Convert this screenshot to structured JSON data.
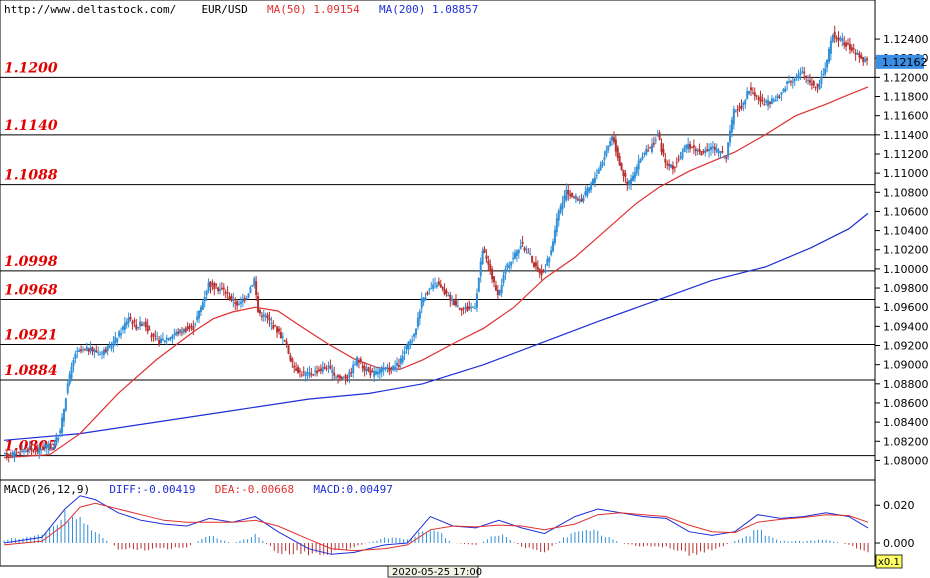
{
  "header": {
    "source_url": "http://www.deltastock.com/",
    "symbol": "EUR/USD",
    "ma50_label": "MA(50)",
    "ma50_value": "1.09154",
    "ma200_label": "MA(200)",
    "ma200_value": "1.08857"
  },
  "macd_header": {
    "name": "MACD(26,12,9)",
    "diff": "DIFF:-0.00419",
    "dea": "DEA:-0.00668",
    "macd": "MACD:0.00497"
  },
  "footer": {
    "date_label": "2020-05-25 17:00",
    "zoom_label": "x0.1"
  },
  "current_price": "1.12162",
  "colors": {
    "up": "#2f8fd8",
    "down": "#b83030",
    "ma50": "#e03030",
    "ma200": "#1e2ed8",
    "level_text": "#e00000",
    "price_tag": "#3a8ee6"
  },
  "chart_data": {
    "type": "candlestick",
    "y_ticks": [
      "1.12400",
      "1.12200",
      "1.12000",
      "1.11800",
      "1.11600",
      "1.11400",
      "1.11200",
      "1.11000",
      "1.10800",
      "1.10600",
      "1.10400",
      "1.10200",
      "1.10000",
      "1.09800",
      "1.09600",
      "1.09400",
      "1.09200",
      "1.09000",
      "1.08800",
      "1.08600",
      "1.08400",
      "1.08200",
      "1.08000"
    ],
    "ylim": [
      1.079,
      1.1262
    ],
    "levels": [
      "1.1200",
      "1.1140",
      "1.1088",
      "1.0998",
      "1.0968",
      "1.0921",
      "1.0884",
      "1.0805"
    ],
    "macd_ticks": [
      "0.020",
      "0.000"
    ],
    "price_path": [
      [
        0,
        1.0805
      ],
      [
        4,
        1.0808
      ],
      [
        7,
        1.0812
      ],
      [
        9,
        1.081
      ],
      [
        11,
        1.0815
      ],
      [
        13,
        1.0814
      ],
      [
        15,
        1.083
      ],
      [
        17,
        1.088
      ],
      [
        19,
        1.0912
      ],
      [
        22,
        1.0916
      ],
      [
        26,
        1.0913
      ],
      [
        28,
        1.0918
      ],
      [
        31,
        1.0935
      ],
      [
        33,
        1.095
      ],
      [
        35,
        1.094
      ],
      [
        37,
        1.0945
      ],
      [
        39,
        1.093
      ],
      [
        41,
        1.0924
      ],
      [
        44,
        1.093
      ],
      [
        47,
        1.0936
      ],
      [
        50,
        1.0939
      ],
      [
        52,
        1.096
      ],
      [
        54,
        1.0985
      ],
      [
        56,
        1.098
      ],
      [
        58,
        1.0978
      ],
      [
        60,
        1.0968
      ],
      [
        62,
        1.0962
      ],
      [
        64,
        1.0972
      ],
      [
        66,
        1.099
      ],
      [
        67,
        1.0955
      ],
      [
        69,
        1.095
      ],
      [
        72,
        1.0936
      ],
      [
        74,
        1.0925
      ],
      [
        76,
        1.09
      ],
      [
        78,
        1.0892
      ],
      [
        80,
        1.089
      ],
      [
        83,
        1.0894
      ],
      [
        85,
        1.0898
      ],
      [
        87,
        1.089
      ],
      [
        89,
        1.0885
      ],
      [
        91,
        1.089
      ],
      [
        93,
        1.0906
      ],
      [
        95,
        1.0896
      ],
      [
        97,
        1.089
      ],
      [
        99,
        1.0894
      ],
      [
        102,
        1.0896
      ],
      [
        104,
        1.09
      ],
      [
        106,
        1.0918
      ],
      [
        108,
        1.093
      ],
      [
        110,
        1.0968
      ],
      [
        112,
        1.0978
      ],
      [
        114,
        1.0985
      ],
      [
        116,
        1.0975
      ],
      [
        118,
        1.0967
      ],
      [
        120,
        1.096
      ],
      [
        122,
        1.0958
      ],
      [
        124,
        1.0962
      ],
      [
        126,
        1.102
      ],
      [
        128,
        1.0998
      ],
      [
        130,
        1.097
      ],
      [
        132,
        1.1
      ],
      [
        134,
        1.1012
      ],
      [
        136,
        1.1025
      ],
      [
        138,
        1.1018
      ],
      [
        140,
        1.1
      ],
      [
        142,
        1.0995
      ],
      [
        144,
        1.102
      ],
      [
        146,
        1.106
      ],
      [
        148,
        1.108
      ],
      [
        150,
        1.1075
      ],
      [
        152,
        1.1072
      ],
      [
        154,
        1.1085
      ],
      [
        156,
        1.11
      ],
      [
        158,
        1.1118
      ],
      [
        160,
        1.114
      ],
      [
        162,
        1.111
      ],
      [
        164,
        1.1088
      ],
      [
        166,
        1.11
      ],
      [
        168,
        1.112
      ],
      [
        170,
        1.1125
      ],
      [
        172,
        1.114
      ],
      [
        174,
        1.111
      ],
      [
        176,
        1.1105
      ],
      [
        178,
        1.1118
      ],
      [
        180,
        1.113
      ],
      [
        182,
        1.1125
      ],
      [
        184,
        1.112
      ],
      [
        186,
        1.1128
      ],
      [
        188,
        1.1122
      ],
      [
        190,
        1.1118
      ],
      [
        192,
        1.1165
      ],
      [
        194,
        1.117
      ],
      [
        196,
        1.1188
      ],
      [
        198,
        1.118
      ],
      [
        200,
        1.1172
      ],
      [
        202,
        1.1175
      ],
      [
        204,
        1.118
      ],
      [
        206,
        1.1195
      ],
      [
        208,
        1.12
      ],
      [
        210,
        1.1205
      ],
      [
        212,
        1.1195
      ],
      [
        214,
        1.119
      ],
      [
        216,
        1.121
      ],
      [
        218,
        1.1245
      ],
      [
        220,
        1.124
      ],
      [
        222,
        1.1232
      ],
      [
        224,
        1.1226
      ],
      [
        226,
        1.1218
      ],
      [
        227,
        1.1216
      ]
    ],
    "ma50_path": [
      [
        0,
        1.0803
      ],
      [
        12,
        1.0806
      ],
      [
        20,
        1.0828
      ],
      [
        30,
        1.087
      ],
      [
        40,
        1.0905
      ],
      [
        50,
        1.0935
      ],
      [
        55,
        1.0948
      ],
      [
        60,
        1.0955
      ],
      [
        66,
        1.096
      ],
      [
        72,
        1.0956
      ],
      [
        78,
        1.094
      ],
      [
        85,
        1.0922
      ],
      [
        92,
        1.0906
      ],
      [
        98,
        1.0897
      ],
      [
        104,
        1.0895
      ],
      [
        110,
        1.0905
      ],
      [
        118,
        1.0922
      ],
      [
        126,
        1.0938
      ],
      [
        134,
        1.096
      ],
      [
        142,
        1.099
      ],
      [
        150,
        1.1012
      ],
      [
        158,
        1.104
      ],
      [
        166,
        1.1068
      ],
      [
        172,
        1.1085
      ],
      [
        180,
        1.1102
      ],
      [
        186,
        1.1112
      ],
      [
        192,
        1.1122
      ],
      [
        200,
        1.114
      ],
      [
        208,
        1.116
      ],
      [
        216,
        1.1172
      ],
      [
        222,
        1.1182
      ],
      [
        227,
        1.119
      ]
    ],
    "ma200_path": [
      [
        0,
        1.0821
      ],
      [
        20,
        1.0828
      ],
      [
        40,
        1.084
      ],
      [
        60,
        1.0852
      ],
      [
        80,
        1.0864
      ],
      [
        96,
        1.087
      ],
      [
        110,
        1.088
      ],
      [
        126,
        1.09
      ],
      [
        140,
        1.0921
      ],
      [
        156,
        1.0945
      ],
      [
        170,
        1.0965
      ],
      [
        186,
        1.0988
      ],
      [
        200,
        1.1002
      ],
      [
        212,
        1.1022
      ],
      [
        222,
        1.1042
      ],
      [
        227,
        1.1058
      ]
    ],
    "macd_ylim": [
      -0.009,
      0.027
    ],
    "macd_diff_path": [
      [
        0,
        0.0
      ],
      [
        10,
        0.003
      ],
      [
        16,
        0.018
      ],
      [
        20,
        0.025
      ],
      [
        24,
        0.023
      ],
      [
        30,
        0.016
      ],
      [
        36,
        0.012
      ],
      [
        42,
        0.01
      ],
      [
        48,
        0.009
      ],
      [
        54,
        0.013
      ],
      [
        60,
        0.011
      ],
      [
        66,
        0.014
      ],
      [
        72,
        0.006
      ],
      [
        80,
        -0.003
      ],
      [
        86,
        -0.006
      ],
      [
        92,
        -0.005
      ],
      [
        100,
        -0.001
      ],
      [
        106,
        0.0
      ],
      [
        112,
        0.014
      ],
      [
        118,
        0.009
      ],
      [
        124,
        0.008
      ],
      [
        130,
        0.012
      ],
      [
        136,
        0.008
      ],
      [
        142,
        0.005
      ],
      [
        150,
        0.014
      ],
      [
        156,
        0.018
      ],
      [
        162,
        0.016
      ],
      [
        168,
        0.014
      ],
      [
        174,
        0.013
      ],
      [
        180,
        0.006
      ],
      [
        186,
        0.004
      ],
      [
        192,
        0.006
      ],
      [
        198,
        0.015
      ],
      [
        204,
        0.013
      ],
      [
        210,
        0.014
      ],
      [
        216,
        0.016
      ],
      [
        222,
        0.014
      ],
      [
        227,
        0.008
      ]
    ],
    "macd_dea_path": [
      [
        0,
        -0.001
      ],
      [
        10,
        0.001
      ],
      [
        16,
        0.01
      ],
      [
        20,
        0.019
      ],
      [
        24,
        0.021
      ],
      [
        30,
        0.018
      ],
      [
        36,
        0.015
      ],
      [
        42,
        0.012
      ],
      [
        48,
        0.011
      ],
      [
        54,
        0.011
      ],
      [
        60,
        0.011
      ],
      [
        66,
        0.012
      ],
      [
        72,
        0.009
      ],
      [
        80,
        0.002
      ],
      [
        86,
        -0.003
      ],
      [
        92,
        -0.004
      ],
      [
        100,
        -0.003
      ],
      [
        106,
        -0.001
      ],
      [
        112,
        0.007
      ],
      [
        118,
        0.009
      ],
      [
        124,
        0.0085
      ],
      [
        130,
        0.0095
      ],
      [
        136,
        0.009
      ],
      [
        142,
        0.007
      ],
      [
        150,
        0.01
      ],
      [
        156,
        0.015
      ],
      [
        162,
        0.016
      ],
      [
        168,
        0.015
      ],
      [
        174,
        0.014
      ],
      [
        180,
        0.0095
      ],
      [
        186,
        0.006
      ],
      [
        192,
        0.0055
      ],
      [
        198,
        0.011
      ],
      [
        204,
        0.0125
      ],
      [
        210,
        0.0135
      ],
      [
        216,
        0.015
      ],
      [
        222,
        0.0145
      ],
      [
        227,
        0.011
      ]
    ],
    "macd_hist_path": [
      [
        0,
        0.002
      ],
      [
        10,
        0.004
      ],
      [
        16,
        0.015
      ],
      [
        20,
        0.013
      ],
      [
        24,
        0.006
      ],
      [
        30,
        -0.003
      ],
      [
        36,
        -0.004
      ],
      [
        42,
        -0.003
      ],
      [
        48,
        -0.002
      ],
      [
        54,
        0.004
      ],
      [
        60,
        0.0
      ],
      [
        66,
        0.004
      ],
      [
        72,
        -0.005
      ],
      [
        80,
        -0.006
      ],
      [
        86,
        -0.005
      ],
      [
        92,
        -0.002
      ],
      [
        100,
        0.003
      ],
      [
        106,
        0.002
      ],
      [
        112,
        0.009
      ],
      [
        118,
        0.0
      ],
      [
        124,
        -0.001
      ],
      [
        130,
        0.005
      ],
      [
        136,
        -0.002
      ],
      [
        142,
        -0.005
      ],
      [
        150,
        0.007
      ],
      [
        156,
        0.006
      ],
      [
        162,
        0.0
      ],
      [
        168,
        -0.002
      ],
      [
        174,
        -0.002
      ],
      [
        180,
        -0.006
      ],
      [
        186,
        -0.004
      ],
      [
        192,
        0.001
      ],
      [
        198,
        0.007
      ],
      [
        204,
        0.001
      ],
      [
        210,
        0.001
      ],
      [
        216,
        0.002
      ],
      [
        222,
        -0.001
      ],
      [
        227,
        -0.005
      ]
    ]
  }
}
